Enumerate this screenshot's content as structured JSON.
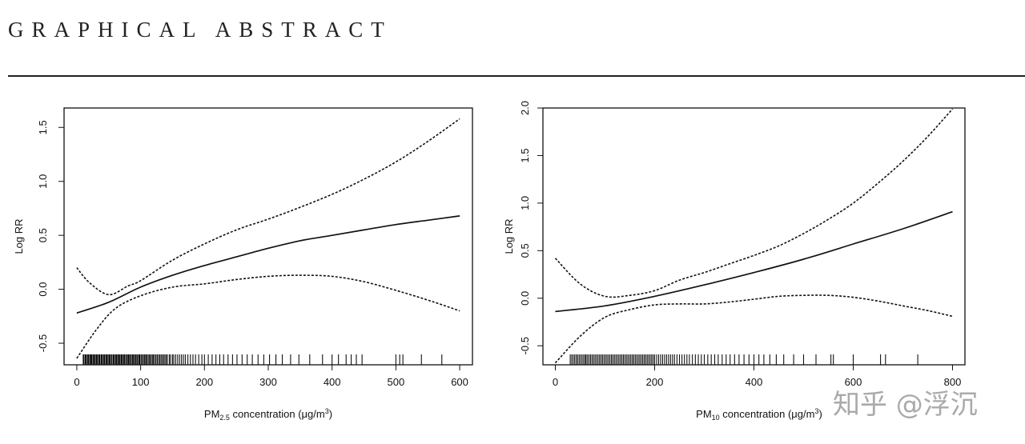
{
  "header": {
    "title": "GRAPHICAL ABSTRACT"
  },
  "watermark": {
    "text": "知乎 @浮沉",
    "color": "#aaaaaa"
  },
  "chart_data": [
    {
      "type": "line",
      "title": "",
      "xlabel_main": "PM",
      "xlabel_sub": "2.5",
      "xlabel_tail": " concentration (μg/m",
      "xlabel_sup": "3",
      "xlabel_end": ")",
      "ylabel": "Log RR",
      "xlim": [
        -20,
        620
      ],
      "ylim": [
        -0.7,
        1.68
      ],
      "xticks": [
        0,
        100,
        200,
        300,
        400,
        500,
        600
      ],
      "xtick_labels": [
        "0",
        "100",
        "200",
        "300",
        "400",
        "500",
        "600"
      ],
      "yticks": [
        -0.5,
        0.0,
        0.5,
        1.0,
        1.5
      ],
      "ytick_labels": [
        "-0.5",
        "0.0",
        "0.5",
        "1.0",
        "1.5"
      ],
      "series": [
        {
          "name": "estimate",
          "style": "solid",
          "x": [
            0,
            50,
            100,
            150,
            200,
            250,
            300,
            350,
            400,
            450,
            500,
            550,
            600
          ],
          "y": [
            -0.22,
            -0.12,
            0.02,
            0.13,
            0.22,
            0.3,
            0.38,
            0.45,
            0.5,
            0.55,
            0.6,
            0.64,
            0.68
          ]
        },
        {
          "name": "upper CI",
          "style": "dashed",
          "x": [
            0,
            20,
            50,
            80,
            100,
            150,
            200,
            250,
            300,
            350,
            400,
            450,
            500,
            550,
            600
          ],
          "y": [
            0.2,
            0.06,
            -0.05,
            0.03,
            0.08,
            0.27,
            0.42,
            0.55,
            0.65,
            0.76,
            0.88,
            1.02,
            1.18,
            1.37,
            1.58
          ]
        },
        {
          "name": "lower CI",
          "style": "dashed",
          "x": [
            0,
            30,
            60,
            100,
            150,
            200,
            250,
            300,
            350,
            400,
            450,
            500,
            550,
            600
          ],
          "y": [
            -0.64,
            -0.38,
            -0.18,
            -0.06,
            0.02,
            0.05,
            0.09,
            0.12,
            0.13,
            0.12,
            0.07,
            -0.01,
            -0.1,
            -0.2
          ]
        }
      ],
      "rug": [
        10,
        11,
        13,
        14,
        15,
        17,
        18,
        19,
        21,
        22,
        23,
        24,
        26,
        27,
        28,
        30,
        31,
        32,
        34,
        35,
        36,
        38,
        39,
        40,
        42,
        43,
        44,
        46,
        47,
        48,
        50,
        51,
        52,
        54,
        55,
        57,
        58,
        59,
        61,
        62,
        63,
        65,
        66,
        67,
        69,
        70,
        71,
        73,
        74,
        75,
        77,
        78,
        80,
        81,
        82,
        84,
        85,
        87,
        88,
        89,
        91,
        92,
        94,
        95,
        97,
        98,
        99,
        101,
        103,
        104,
        106,
        107,
        109,
        110,
        112,
        114,
        115,
        117,
        119,
        120,
        122,
        124,
        126,
        128,
        130,
        132,
        134,
        136,
        138,
        140,
        142,
        145,
        147,
        150,
        152,
        155,
        158,
        161,
        164,
        167,
        170,
        174,
        178,
        182,
        186,
        191,
        196,
        200,
        206,
        212,
        218,
        224,
        230,
        237,
        244,
        251,
        259,
        267,
        275,
        284,
        293,
        302,
        312,
        322,
        335,
        348,
        365,
        385,
        400,
        410,
        422,
        430,
        438,
        447,
        500,
        506,
        511,
        540,
        572
      ]
    },
    {
      "type": "line",
      "title": "",
      "xlabel_main": "PM",
      "xlabel_sub": "10",
      "xlabel_tail": " concentration (μg/m",
      "xlabel_sup": "3",
      "xlabel_end": ")",
      "ylabel": "Log RR",
      "xlim": [
        -25,
        825
      ],
      "ylim": [
        -0.7,
        2.0
      ],
      "xticks": [
        0,
        200,
        400,
        600,
        800
      ],
      "xtick_labels": [
        "0",
        "200",
        "400",
        "600",
        "800"
      ],
      "yticks": [
        -0.5,
        0.0,
        0.5,
        1.0,
        1.5,
        2.0
      ],
      "ytick_labels": [
        "-0.5",
        "0.0",
        "0.5",
        "1.0",
        "1.5",
        "2.0"
      ],
      "series": [
        {
          "name": "estimate",
          "style": "solid",
          "x": [
            0,
            100,
            200,
            300,
            400,
            500,
            600,
            700,
            800
          ],
          "y": [
            -0.14,
            -0.08,
            0.02,
            0.14,
            0.27,
            0.41,
            0.57,
            0.73,
            0.91
          ]
        },
        {
          "name": "upper CI",
          "style": "dashed",
          "x": [
            0,
            50,
            100,
            150,
            200,
            250,
            300,
            350,
            400,
            450,
            500,
            550,
            600,
            650,
            700,
            750,
            800
          ],
          "y": [
            0.42,
            0.15,
            0.02,
            0.03,
            0.08,
            0.19,
            0.27,
            0.36,
            0.45,
            0.55,
            0.68,
            0.83,
            1.0,
            1.21,
            1.44,
            1.7,
            1.99
          ]
        },
        {
          "name": "lower CI",
          "style": "dashed",
          "x": [
            0,
            50,
            100,
            150,
            200,
            250,
            300,
            350,
            400,
            450,
            500,
            550,
            600,
            650,
            700,
            750,
            800
          ],
          "y": [
            -0.68,
            -0.4,
            -0.2,
            -0.12,
            -0.07,
            -0.06,
            -0.06,
            -0.04,
            -0.01,
            0.02,
            0.03,
            0.03,
            0.01,
            -0.03,
            -0.08,
            -0.13,
            -0.19
          ]
        }
      ],
      "rug": [
        30,
        33,
        36,
        39,
        42,
        45,
        48,
        51,
        54,
        57,
        60,
        62,
        65,
        68,
        71,
        74,
        77,
        80,
        83,
        86,
        89,
        92,
        95,
        98,
        101,
        104,
        107,
        110,
        113,
        116,
        119,
        122,
        125,
        128,
        131,
        134,
        137,
        140,
        143,
        146,
        149,
        152,
        155,
        158,
        161,
        164,
        167,
        170,
        173,
        176,
        179,
        182,
        185,
        188,
        191,
        194,
        197,
        200,
        204,
        208,
        212,
        216,
        220,
        224,
        228,
        232,
        236,
        240,
        245,
        250,
        255,
        260,
        265,
        270,
        276,
        282,
        288,
        294,
        300,
        307,
        314,
        321,
        328,
        336,
        344,
        352,
        361,
        370,
        380,
        390,
        400,
        410,
        420,
        432,
        445,
        460,
        480,
        500,
        525,
        555,
        560,
        600,
        655,
        665,
        730
      ]
    }
  ]
}
